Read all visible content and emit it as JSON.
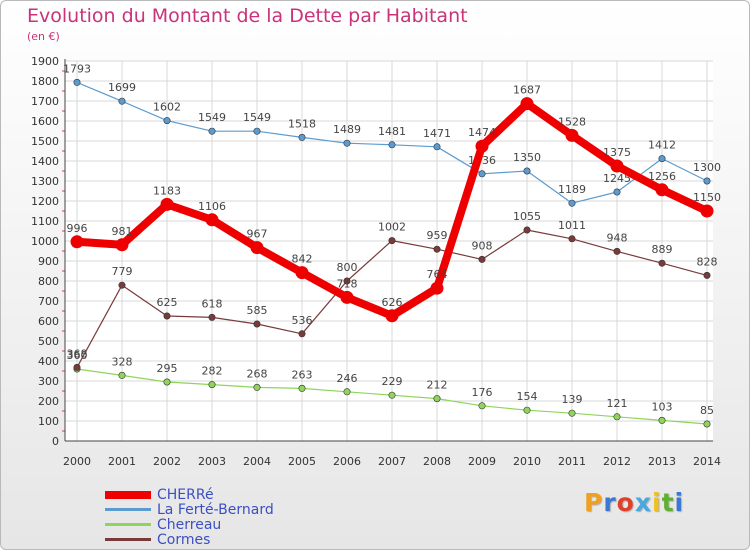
{
  "header": {
    "title": "Evolution du Montant de la Dette par Habitant",
    "unit": "(en €)"
  },
  "branding": {
    "text": "Proxiti",
    "colors": [
      "#f0a020",
      "#3a78d4",
      "#e0402a",
      "#48a8e0",
      "#f0c020",
      "#60b030",
      "#3a78d4"
    ]
  },
  "chart_data": {
    "type": "line",
    "title": "Evolution du Montant de la Dette par Habitant",
    "subtitle": "(en €)",
    "xlabel": "",
    "ylabel": "",
    "ylim": [
      0,
      1900
    ],
    "ytick_step": 100,
    "grid": true,
    "legend_position": "bottom-left",
    "categories": [
      "2000",
      "2001",
      "2002",
      "2003",
      "2004",
      "2005",
      "2006",
      "2007",
      "2008",
      "2009",
      "2010",
      "2011",
      "2012",
      "2013",
      "2014"
    ],
    "series": [
      {
        "name": "CHERRé",
        "color": "#ee0000",
        "emphasis": true,
        "values": [
          996,
          981,
          1183,
          1106,
          967,
          842,
          718,
          626,
          764,
          1474,
          1687,
          1528,
          1375,
          1256,
          1150
        ]
      },
      {
        "name": "La Ferté-Bernard",
        "color": "#5b9bd0",
        "emphasis": false,
        "values": [
          1793,
          1699,
          1602,
          1549,
          1549,
          1518,
          1489,
          1481,
          1471,
          1336,
          1350,
          1189,
          1245,
          1412,
          1300
        ]
      },
      {
        "name": "Cherreau",
        "color": "#8fd45c",
        "emphasis": false,
        "values": [
          360,
          328,
          295,
          282,
          268,
          263,
          246,
          229,
          212,
          176,
          154,
          139,
          121,
          103,
          85
        ]
      },
      {
        "name": "Cormes",
        "color": "#7a3a3a",
        "emphasis": false,
        "values": [
          368,
          779,
          625,
          618,
          585,
          536,
          800,
          1002,
          959,
          908,
          1055,
          1011,
          948,
          889,
          828
        ]
      }
    ]
  }
}
